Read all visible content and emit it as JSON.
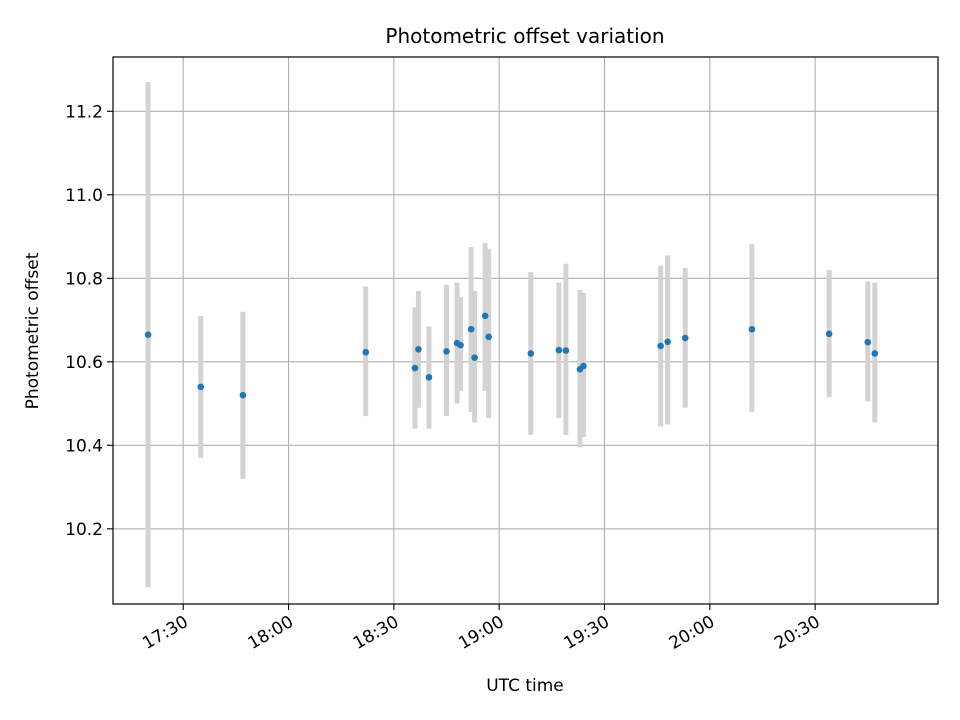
{
  "chart_data": {
    "type": "scatter",
    "title": "Photometric offset variation",
    "xlabel": "UTC time",
    "ylabel": "Photometric offset",
    "grid": true,
    "xlim": [
      "17:10",
      "21:05"
    ],
    "ylim": [
      10.02,
      11.33
    ],
    "x_ticks": [
      "17:30",
      "18:00",
      "18:30",
      "19:00",
      "19:30",
      "20:00",
      "20:30"
    ],
    "y_ticks": [
      10.2,
      10.4,
      10.6,
      10.8,
      11.0,
      11.2
    ],
    "y_tick_labels": [
      "10.2",
      "10.4",
      "10.6",
      "10.8",
      "11.0",
      "11.2"
    ],
    "point_color": "#1f77b4",
    "errorbar_color": "#d3d3d3",
    "points": [
      {
        "t": "17:20",
        "y": 10.665,
        "lo": 10.06,
        "hi": 11.27
      },
      {
        "t": "17:35",
        "y": 10.54,
        "lo": 10.37,
        "hi": 10.71
      },
      {
        "t": "17:47",
        "y": 10.52,
        "lo": 10.32,
        "hi": 10.72
      },
      {
        "t": "18:22",
        "y": 10.623,
        "lo": 10.47,
        "hi": 10.78
      },
      {
        "t": "18:36",
        "y": 10.585,
        "lo": 10.44,
        "hi": 10.73
      },
      {
        "t": "18:37",
        "y": 10.63,
        "lo": 10.49,
        "hi": 10.77
      },
      {
        "t": "18:40",
        "y": 10.563,
        "lo": 10.44,
        "hi": 10.685
      },
      {
        "t": "18:45",
        "y": 10.625,
        "lo": 10.47,
        "hi": 10.785
      },
      {
        "t": "18:48",
        "y": 10.645,
        "lo": 10.5,
        "hi": 10.79
      },
      {
        "t": "18:49",
        "y": 10.64,
        "lo": 10.53,
        "hi": 10.755
      },
      {
        "t": "18:52",
        "y": 10.678,
        "lo": 10.48,
        "hi": 10.875
      },
      {
        "t": "18:53",
        "y": 10.61,
        "lo": 10.455,
        "hi": 10.77
      },
      {
        "t": "18:56",
        "y": 10.71,
        "lo": 10.53,
        "hi": 10.885
      },
      {
        "t": "18:57",
        "y": 10.66,
        "lo": 10.465,
        "hi": 10.87
      },
      {
        "t": "19:09",
        "y": 10.62,
        "lo": 10.425,
        "hi": 10.815
      },
      {
        "t": "19:17",
        "y": 10.628,
        "lo": 10.465,
        "hi": 10.79
      },
      {
        "t": "19:19",
        "y": 10.627,
        "lo": 10.425,
        "hi": 10.835
      },
      {
        "t": "19:23",
        "y": 10.582,
        "lo": 10.395,
        "hi": 10.772
      },
      {
        "t": "19:24",
        "y": 10.59,
        "lo": 10.42,
        "hi": 10.765
      },
      {
        "t": "19:46",
        "y": 10.638,
        "lo": 10.445,
        "hi": 10.83
      },
      {
        "t": "19:48",
        "y": 10.648,
        "lo": 10.45,
        "hi": 10.855
      },
      {
        "t": "19:53",
        "y": 10.657,
        "lo": 10.49,
        "hi": 10.825
      },
      {
        "t": "20:12",
        "y": 10.678,
        "lo": 10.48,
        "hi": 10.882
      },
      {
        "t": "20:34",
        "y": 10.667,
        "lo": 10.515,
        "hi": 10.82
      },
      {
        "t": "20:45",
        "y": 10.647,
        "lo": 10.505,
        "hi": 10.792
      },
      {
        "t": "20:47",
        "y": 10.62,
        "lo": 10.455,
        "hi": 10.79
      }
    ]
  }
}
